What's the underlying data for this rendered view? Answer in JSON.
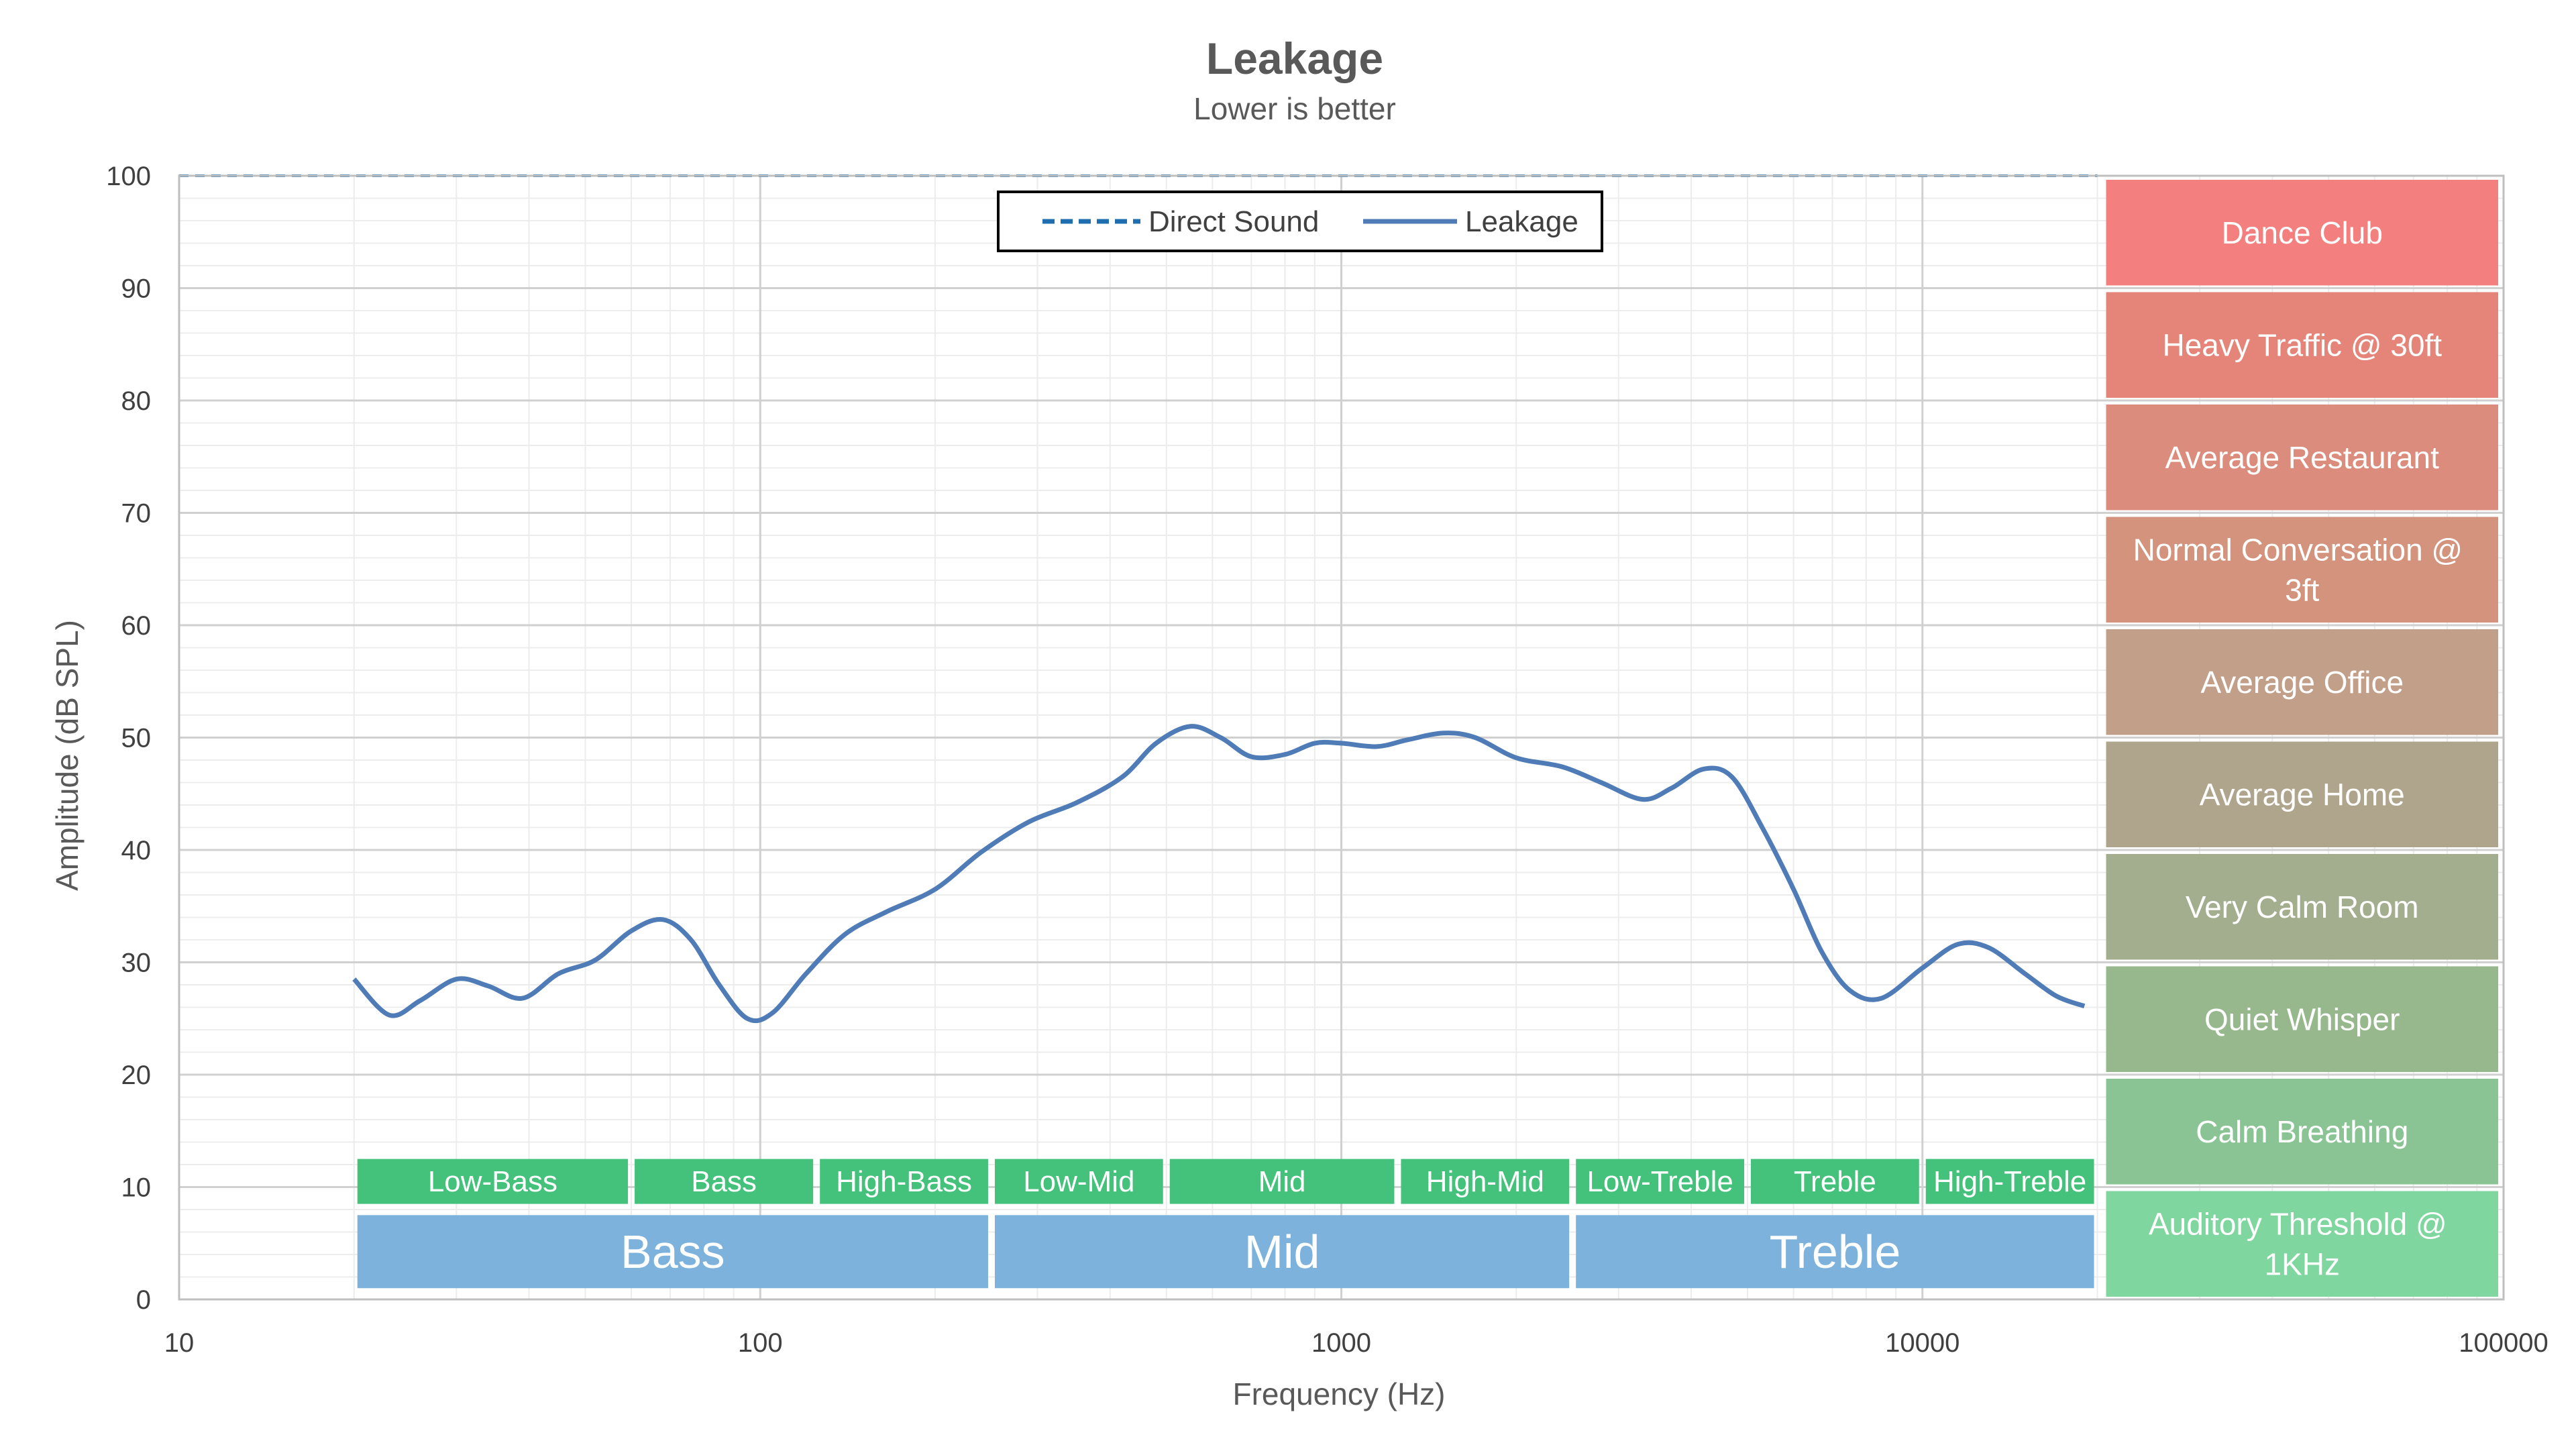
{
  "chart_data": {
    "type": "line",
    "title": "Leakage",
    "subtitle": "Lower is better",
    "xlabel": "Frequency (Hz)",
    "ylabel": "Amplitude (dB SPL)",
    "x_scale": "log",
    "xlim": [
      10,
      100000
    ],
    "ylim": [
      0,
      100
    ],
    "x_ticks": [
      "10",
      "100",
      "1000",
      "10000",
      "100000"
    ],
    "y_ticks": [
      "0",
      "10",
      "20",
      "30",
      "40",
      "50",
      "60",
      "70",
      "80",
      "90",
      "100"
    ],
    "grid": true,
    "legend": {
      "position": "top-center",
      "entries": [
        "Direct Sound",
        "Leakage"
      ]
    },
    "series": [
      {
        "name": "Direct Sound",
        "style": "dashed",
        "color": "#1f6fb0",
        "x": [
          10,
          20000
        ],
        "y": [
          100,
          100
        ]
      },
      {
        "name": "Leakage",
        "style": "solid",
        "color": "#4f7cb6",
        "x": [
          20,
          23,
          26,
          30,
          34,
          39,
          45,
          52,
          60,
          68,
          76,
          85,
          95,
          105,
          120,
          140,
          165,
          200,
          240,
          290,
          350,
          420,
          480,
          550,
          620,
          700,
          800,
          900,
          1000,
          1150,
          1300,
          1500,
          1700,
          2000,
          2400,
          2800,
          3300,
          3700,
          4200,
          4700,
          5300,
          6000,
          6700,
          7500,
          8500,
          10000,
          11500,
          13000,
          15000,
          17000,
          19000
        ],
        "y": [
          28.5,
          25.3,
          26.6,
          28.5,
          27.9,
          26.8,
          29.0,
          30.2,
          32.8,
          33.8,
          32.0,
          28.0,
          25.0,
          25.5,
          29.0,
          32.5,
          34.5,
          36.5,
          39.8,
          42.5,
          44.2,
          46.5,
          49.5,
          51.0,
          50.0,
          48.3,
          48.5,
          49.5,
          49.5,
          49.2,
          49.8,
          50.4,
          50.0,
          48.2,
          47.4,
          46.0,
          44.5,
          45.5,
          47.2,
          46.5,
          42.0,
          36.5,
          31.0,
          27.5,
          26.8,
          29.5,
          31.6,
          31.3,
          29.0,
          27.0,
          26.1
        ]
      }
    ],
    "band_labels": [
      {
        "label": "Low-Bass",
        "from": 20,
        "to": 60
      },
      {
        "label": "Bass",
        "from": 60,
        "to": 125
      },
      {
        "label": "High-Bass",
        "from": 125,
        "to": 250
      },
      {
        "label": "Low-Mid",
        "from": 250,
        "to": 500
      },
      {
        "label": "Mid",
        "from": 500,
        "to": 1250
      },
      {
        "label": "High-Mid",
        "from": 1250,
        "to": 2500
      },
      {
        "label": "Low-Treble",
        "from": 2500,
        "to": 5000
      },
      {
        "label": "Treble",
        "from": 5000,
        "to": 10000
      },
      {
        "label": "High-Treble",
        "from": 10000,
        "to": 20000
      }
    ],
    "region_labels": [
      {
        "label": "Bass",
        "from": 20,
        "to": 250
      },
      {
        "label": "Mid",
        "from": 250,
        "to": 2500
      },
      {
        "label": "Treble",
        "from": 2500,
        "to": 20000
      }
    ],
    "noise_levels": [
      {
        "label": "Dance Club",
        "from": 90,
        "to": 100,
        "color": "#f47f7f"
      },
      {
        "label": "Heavy Traffic @ 30ft",
        "from": 80,
        "to": 90,
        "color": "#e5857a"
      },
      {
        "label": "Average Restaurant",
        "from": 70,
        "to": 80,
        "color": "#dc8c7c"
      },
      {
        "label": "Normal Conversation @ 3ft",
        "from": 60,
        "to": 70,
        "color": "#d3937c"
      },
      {
        "label": "Average Office",
        "from": 50,
        "to": 60,
        "color": "#c19f88"
      },
      {
        "label": "Average Home",
        "from": 40,
        "to": 50,
        "color": "#afa58c"
      },
      {
        "label": "Very Calm Room",
        "from": 30,
        "to": 40,
        "color": "#a2ae8e"
      },
      {
        "label": "Quiet Whisper",
        "from": 20,
        "to": 30,
        "color": "#97b78d"
      },
      {
        "label": "Calm Breathing",
        "from": 10,
        "to": 20,
        "color": "#8ac495"
      },
      {
        "label": "Auditory Threshold @ 1KHz",
        "from": 0,
        "to": 10,
        "color": "#7fd69f"
      }
    ],
    "colors": {
      "band": "#44c17b",
      "region": "#7db2dc",
      "grid_major": "#d0d0d0",
      "grid_minor": "#ececec"
    }
  }
}
